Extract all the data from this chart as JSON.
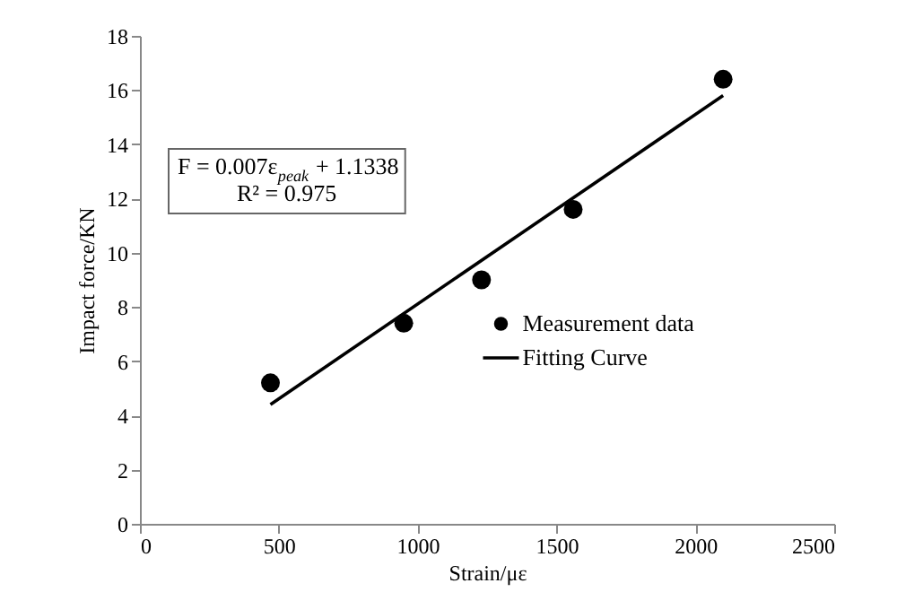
{
  "chart_data": {
    "type": "scatter",
    "xlabel": "Strain/με",
    "ylabel": "Impact force/KN",
    "x": [
      470,
      950,
      1230,
      1560,
      2100
    ],
    "series": [
      {
        "name": "Measurement data",
        "color": "#000000",
        "marker": "circle",
        "values": [
          5.2,
          7.4,
          9.0,
          11.6,
          16.4
        ]
      },
      {
        "name": "Fitting Curve",
        "type": "line",
        "color": "#000000",
        "line_style": "solid",
        "x": [
          470,
          2100
        ],
        "values": [
          4.4,
          15.8
        ]
      }
    ],
    "annotations": [
      "F = 0.007ε$_{peak}$ + 1.1338",
      "R² = 0.975"
    ],
    "xlim": [
      0,
      2500
    ],
    "xticks": [
      0,
      500,
      1000,
      1500,
      2000,
      2500
    ],
    "ylim": [
      0,
      18
    ],
    "yticks": [
      0,
      2,
      4,
      6,
      8,
      10,
      12,
      14,
      16,
      18
    ],
    "grid": false,
    "legend": "right"
  }
}
